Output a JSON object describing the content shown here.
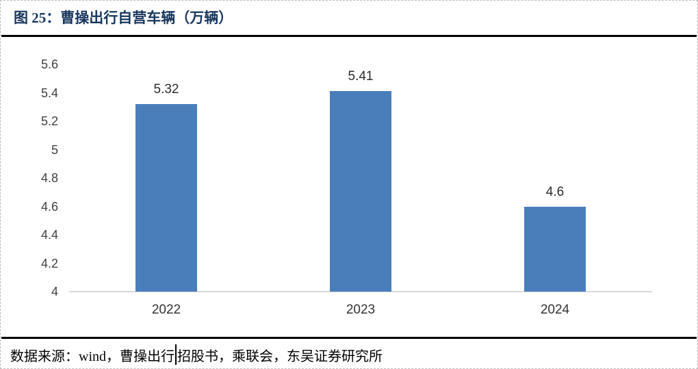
{
  "figure": {
    "title": "图 25：曹操出行自营车辆（万辆）",
    "title_color": "#17365d"
  },
  "chart_data": {
    "type": "bar",
    "title": "曹操出行自营车辆（万辆）",
    "categories": [
      "2022",
      "2023",
      "2024"
    ],
    "values": [
      5.32,
      5.41,
      4.6
    ],
    "value_labels": [
      "5.32",
      "5.41",
      "4.6"
    ],
    "xlabel": "",
    "ylabel": "",
    "ylim": [
      4,
      5.6
    ],
    "yticks": [
      "4",
      "4.2",
      "4.4",
      "4.6",
      "4.8",
      "5",
      "5.2",
      "5.4",
      "5.6"
    ],
    "grid": false,
    "legend": "none",
    "bar_color": "#4a7ebb",
    "axis_line_color": "#d9d9d9"
  },
  "source": {
    "before_cursor": "数据来源：wind，曹操出行",
    "after_cursor": "招股书，乘联会，东吴证券研究所",
    "full_text": "数据来源：wind，曹操出行招股书，乘联会，东吴证券研究所"
  }
}
